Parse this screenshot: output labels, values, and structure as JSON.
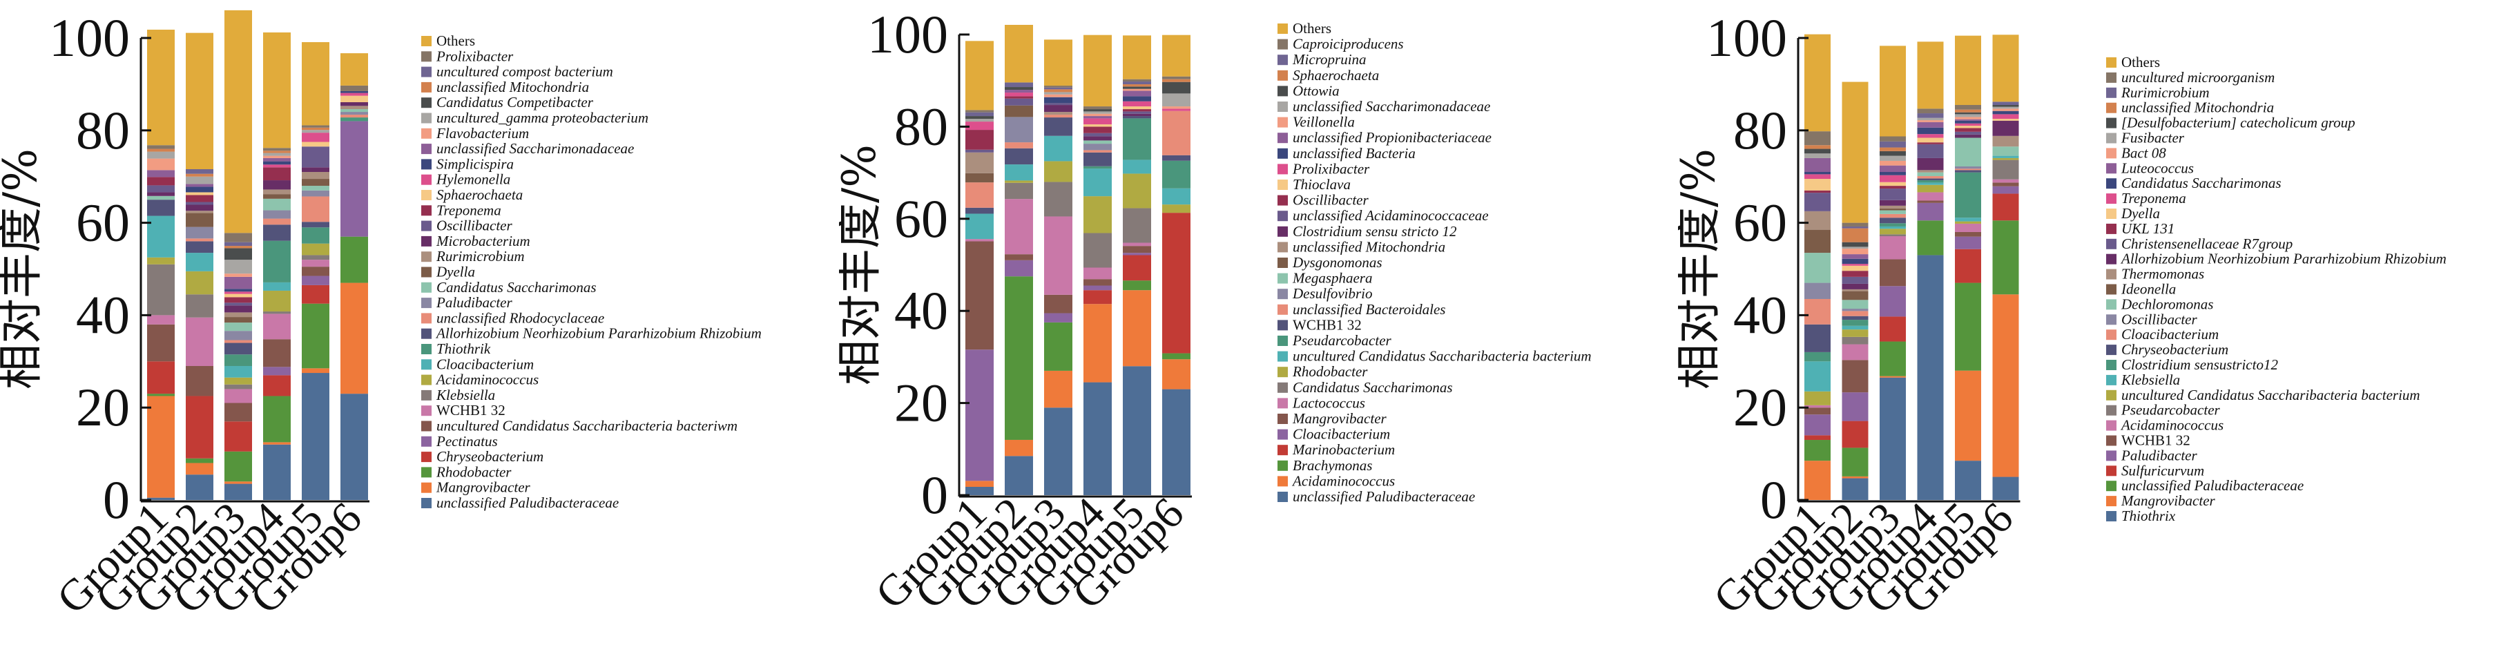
{
  "palette": [
    "#4e6e96",
    "#ef7a3a",
    "#55953c",
    "#c23b35",
    "#8c64a0",
    "#84564c",
    "#c978a8",
    "#857a78",
    "#b0aa42",
    "#4fb1b4",
    "#4a967c",
    "#52537a",
    "#e88c78",
    "#8a87a3",
    "#8dc4ad",
    "#7c5c48",
    "#ab8f7e",
    "#672e66",
    "#6a5a8c",
    "#952f4f",
    "#f6c986",
    "#dd4f8c",
    "#3b477d",
    "#8d5e97",
    "#f29c82",
    "#a8a6a3",
    "#4a4d4d",
    "#d3814e",
    "#6f6592",
    "#857566",
    "#e1ab3b"
  ],
  "chart_data": [
    {
      "type": "bar",
      "stacked": true,
      "title": "",
      "xlabel": "",
      "ylabel": "相对丰度/%",
      "ylim": [
        0,
        100
      ],
      "yticks": [
        "0",
        "20",
        "40",
        "60",
        "80",
        "100"
      ],
      "categories": [
        "Group1",
        "Group2",
        "Group3",
        "Group4",
        "Group5",
        "Group6"
      ],
      "legend_position": "right",
      "legend": [
        "Others",
        "Prolixibacter",
        "uncultured compost bacterium",
        "unclassified Mitochondria",
        "Candidatus Competibacter",
        "uncultured_gamma proteobacterium",
        "Flavobacterium",
        "unclassified Saccharimonadaceae",
        "Simplicispira",
        "Hylemonella",
        "Sphaerochaeta",
        "Treponema",
        "Oscillibacter",
        "Microbacterium",
        "Rurimicrobium",
        "Dyella",
        "Candidatus Saccharimonas",
        "Paludibacter",
        "unclassified Rhodocyclaceae",
        "Allorhizobium Neorhizobium Pararhizobium Rhizobium",
        "Thiothrik",
        "Cloacibacterium",
        "Acidaminococcus",
        "Klebsiella",
        "WCHB1 32",
        "uncultured Candidatus Saccharibacteria bacteriwm",
        "Pectinatus",
        "Chryseobacterium",
        "Rhodobacter",
        "Mangrovibacter",
        "unclassified Paludibacteraceae"
      ],
      "upright_legend": [
        "Others",
        "WCHB1 32"
      ],
      "series_bottom_to_top": [
        [
          0.5,
          22,
          0.5,
          7,
          0,
          8,
          2,
          11,
          1.5,
          9,
          0,
          3.5,
          0,
          0,
          0.8,
          0,
          0,
          0.8,
          1.5,
          1.8,
          0,
          0,
          0,
          1.5,
          2.5,
          1.5,
          0,
          0.6,
          0,
          0.8,
          25
        ],
        [
          5.5,
          2.5,
          1,
          13.5,
          0,
          6.5,
          10.5,
          5,
          5,
          4,
          0,
          2.5,
          0.6,
          2.5,
          0,
          3,
          0.5,
          1.3,
          0.6,
          1.5,
          0.6,
          0,
          1.2,
          0.6,
          0,
          1.6,
          0,
          0.6,
          1,
          0,
          29.5
        ],
        [
          3.5,
          0.5,
          6.5,
          6.5,
          0,
          4,
          3,
          1,
          1.5,
          2.5,
          2.5,
          2.5,
          0.6,
          2,
          1.8,
          1.2,
          1,
          1.5,
          0.6,
          1.2,
          0.7,
          0.5,
          0.6,
          2.6,
          0.7,
          3,
          2.5,
          0.5,
          0.8,
          2,
          48.2
        ],
        [
          12,
          0.5,
          10,
          4.5,
          1.8,
          6,
          5.5,
          0.5,
          4.5,
          1.8,
          9,
          3.5,
          1.3,
          1.8,
          2.5,
          1,
          1,
          2,
          0,
          2.8,
          0,
          0.6,
          0.7,
          0.7,
          0.5,
          0.6,
          0,
          0.5,
          0,
          0.6,
          25
        ],
        [
          27.5,
          1,
          14,
          4,
          2,
          2,
          1.5,
          1,
          2.5,
          0,
          3.5,
          1.2,
          5.5,
          1.3,
          1,
          1.5,
          1.5,
          1,
          4.5,
          0,
          1,
          2,
          0,
          0,
          0,
          0.6,
          0,
          0.5,
          0,
          0.5,
          18
        ],
        [
          23,
          24,
          10,
          0,
          25,
          0,
          0,
          0,
          0,
          0,
          0.8,
          0,
          0.6,
          0.6,
          0.6,
          0,
          0.7,
          0.8,
          0,
          0,
          1.4,
          0.6,
          0.4,
          0,
          0,
          0,
          0,
          0,
          0,
          1.2,
          7
        ]
      ]
    },
    {
      "type": "bar",
      "stacked": true,
      "title": "",
      "xlabel": "",
      "ylabel": "相对丰度/%",
      "ylim": [
        0,
        100
      ],
      "yticks": [
        "0",
        "20",
        "40",
        "60",
        "80",
        "100"
      ],
      "categories": [
        "Group1",
        "Group2",
        "Group3",
        "Group4",
        "Group5",
        "Group6"
      ],
      "legend_position": "right",
      "legend": [
        "Others",
        "Caproiciproducens",
        "Micropruina",
        "Sphaerochaeta",
        "Ottowia",
        "unclassified Saccharimonadaceae",
        "Veillonella",
        "unclassified Propionibacteriaceae",
        "unclassified Bacteria",
        "Prolixibacter",
        "Thioclava",
        "Oscillibacter",
        "unclassified Acidaminococcaceae",
        "Clostridium sensu stricto 12",
        "unclassified Mitochondria",
        "Dysgonomonas",
        "Megasphaera",
        "Desulfovibrio",
        "unclassified Bacteroidales",
        "WCHB1 32",
        "Pseudarcobacter",
        "uncultured Candidatus Saccharibacteria bacterium",
        "Rhodobacter",
        "Candidatus Saccharimonas",
        "Lactococcus",
        "Mangrovibacter",
        "Cloacibacterium",
        "Marinobacterium",
        "Brachymonas",
        "Acidaminococcus",
        "unclassified Paludibacteraceae"
      ],
      "upright_legend": [
        "Others",
        "WCHB1 32",
        "12"
      ],
      "series_bottom_to_top": [
        [
          1.8,
          1.3,
          0,
          0,
          28.5,
          23.5,
          0.5,
          0,
          0,
          5.5,
          0,
          1.3,
          5.5,
          0,
          0,
          2,
          4.5,
          0,
          0.6,
          4.3,
          0,
          1.8,
          0,
          0,
          0,
          0.6,
          0.6,
          0,
          0.8,
          0.5,
          15
        ],
        [
          8.5,
          3.5,
          35.5,
          0,
          3.5,
          1.3,
          12,
          3.5,
          0.5,
          3.5,
          0,
          3.5,
          1.3,
          5.5,
          0,
          2.5,
          0,
          0,
          1.5,
          0.5,
          0,
          0.8,
          0,
          0.6,
          0,
          0,
          0.6,
          0,
          1,
          0,
          12.5
        ],
        [
          19,
          8,
          10.5,
          0,
          2,
          4,
          17,
          7.5,
          4.5,
          5.5,
          0,
          4,
          0.6,
          0,
          0,
          0,
          0.6,
          1.5,
          0.4,
          0,
          0,
          0,
          1.3,
          0,
          0.6,
          0.5,
          0,
          0.6,
          0.4,
          0.4,
          10
        ],
        [
          24.5,
          17,
          0,
          3,
          1,
          1.4,
          2.5,
          7.5,
          8,
          6,
          0.5,
          3,
          0.5,
          1.4,
          0.7,
          0,
          0,
          0.9,
          0.7,
          1.4,
          0.5,
          1.3,
          0,
          0.5,
          0.5,
          0.5,
          0.5,
          0,
          0,
          0.6,
          15.5
        ],
        [
          28,
          16.5,
          2.1,
          5.5,
          0.5,
          1.5,
          0.7,
          7.5,
          7.5,
          3,
          9,
          0.5,
          0,
          0,
          0,
          0,
          0,
          0.5,
          0.5,
          0.5,
          0.6,
          1.1,
          1.1,
          1.2,
          0.4,
          0,
          0.5,
          0.5,
          0.6,
          0.5,
          9.5
        ],
        [
          23,
          6.5,
          1.3,
          30.5,
          0,
          0,
          0,
          0,
          1.8,
          3.5,
          6,
          1.2,
          9.6,
          0,
          0,
          0,
          0,
          0,
          0,
          0,
          0,
          0.5,
          0,
          0,
          0.5,
          2.8,
          2.5,
          0.6,
          0,
          0.6,
          9
        ]
      ]
    },
    {
      "type": "bar",
      "stacked": true,
      "title": "",
      "xlabel": "",
      "ylabel": "相对丰度/%",
      "ylim": [
        0,
        100
      ],
      "yticks": [
        "0",
        "20",
        "40",
        "60",
        "80",
        "100"
      ],
      "categories": [
        "Group1",
        "Group2",
        "Group3",
        "Group4",
        "Group5",
        "Group6"
      ],
      "legend_position": "right",
      "legend": [
        "Others",
        "uncultured microorganism",
        "Rurimicrobium",
        "unclassified Mitochondria",
        "[Desulfobacterium] catecholicum group",
        "Fusibacter",
        "Bact 08",
        "Luteococcus",
        "Candidatus Saccharimonas",
        "Treponema",
        "Dyella",
        "UKL 131",
        "Christensenellaceae R7group",
        "Allorhizobium Neorhizobium Pararhizobium Rhizobium",
        "Thermomonas",
        "Ideonella",
        "Dechloromonas",
        "Oscillibacter",
        "Cloacibacterium",
        "Chryseobacterium",
        "Clostridium sensustricto12",
        "Klebsiella",
        "uncultured Candidatus Saccharibacteria bacterium",
        "Pseudarcobacter",
        "Acidaminococcus",
        "WCHB1 32",
        "Paludibacter",
        "Sulfuricurvum",
        "unclassified Paludibacteraceae",
        "Mangrovibacter",
        "Thiothrix"
      ],
      "upright_legend": [
        "Others",
        "WCHB1 32"
      ],
      "series_bottom_to_top": [
        [
          0,
          8.5,
          4.5,
          1,
          4.5,
          1.5,
          0.5,
          0,
          3,
          6.5,
          2,
          6,
          5.5,
          3.5,
          6.5,
          5,
          4,
          0,
          4,
          0.5,
          2.5,
          1,
          0.5,
          3,
          0,
          1,
          1,
          0.8,
          0,
          3,
          21
        ],
        [
          4.7,
          0.4,
          6.2,
          5.8,
          6.2,
          7,
          3.4,
          1.6,
          1.6,
          0.8,
          1.3,
          0.8,
          1.1,
          0.5,
          1.9,
          1.9,
          0.4,
          1.2,
          1.5,
          1.3,
          1.1,
          0.4,
          1.1,
          1,
          1.2,
          0.4,
          1,
          3,
          0.4,
          0.8,
          30.5
        ],
        [
          26.5,
          0.3,
          7.5,
          5.4,
          6.6,
          5.8,
          5,
          0.4,
          1.2,
          0.5,
          0.7,
          1.2,
          0.8,
          0,
          0.8,
          0.4,
          0.6,
          1.2,
          2.5,
          0.6,
          0.8,
          1.5,
          0.7,
          1.4,
          1,
          1.1,
          1,
          0.8,
          1.3,
          1.1,
          19.6
        ],
        [
          53,
          0,
          7.5,
          0,
          3.8,
          0.5,
          1.8,
          0,
          1.6,
          0.5,
          0.5,
          0.4,
          0.5,
          0,
          0.8,
          0,
          0.5,
          2.6,
          3,
          0.4,
          1,
          0.8,
          1.4,
          1.2,
          0.4,
          0.5,
          0,
          0,
          1,
          1,
          14.5
        ],
        [
          8.5,
          19.5,
          19,
          7.3,
          2.7,
          1,
          1.8,
          0,
          0.5,
          0.8,
          9.8,
          0.5,
          0.3,
          0.5,
          6.2,
          0,
          0,
          0.7,
          0.6,
          0.8,
          0.5,
          0.5,
          0.6,
          0.3,
          0.5,
          0.6,
          0.4,
          0.6,
          0,
          1,
          15
        ],
        [
          5,
          39.5,
          16,
          5.8,
          1.6,
          0.8,
          0.7,
          4.2,
          0.4,
          0.5,
          0,
          0,
          0,
          0,
          2,
          0,
          2.3,
          3.3,
          0,
          0,
          0.4,
          1,
          0.7,
          0,
          0.5,
          0.4,
          0.4,
          0,
          0.7,
          0,
          14.5
        ]
      ]
    }
  ]
}
